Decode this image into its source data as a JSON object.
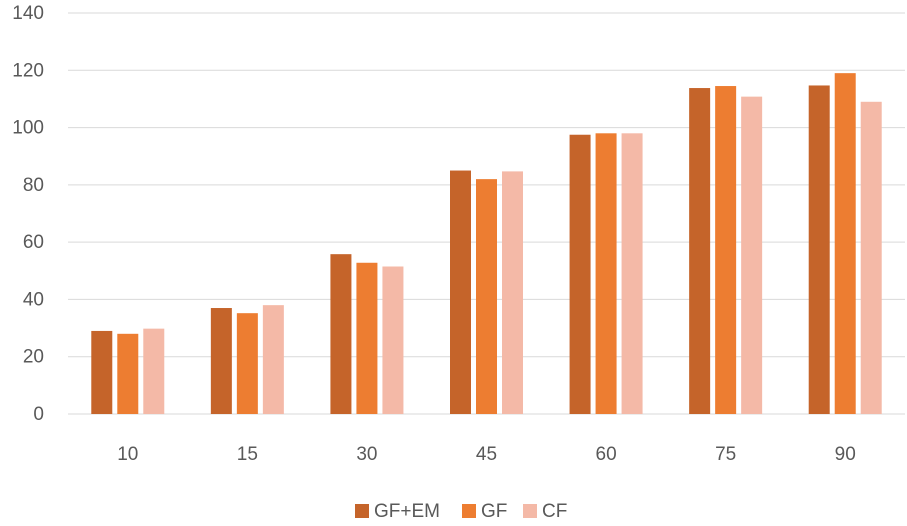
{
  "chart_data": {
    "type": "bar",
    "categories": [
      "10",
      "15",
      "30",
      "45",
      "60",
      "75",
      "90"
    ],
    "series": [
      {
        "name": "GF+EM",
        "color": "#c5642a",
        "values": [
          29,
          37,
          55.8,
          85,
          97.5,
          113.8,
          114.7
        ]
      },
      {
        "name": "GF",
        "color": "#ed7d31",
        "values": [
          28,
          35.2,
          52.8,
          82,
          98,
          114.5,
          119
        ]
      },
      {
        "name": "CF",
        "color": "#f4b9a7",
        "values": [
          29.8,
          38,
          51.5,
          84.7,
          98,
          110.8,
          109
        ]
      }
    ],
    "ylim": [
      0,
      140
    ],
    "yticks": [
      "0",
      "20",
      "40",
      "60",
      "80",
      "100",
      "120",
      "140"
    ],
    "grid": true,
    "legend_position": "bottom"
  }
}
